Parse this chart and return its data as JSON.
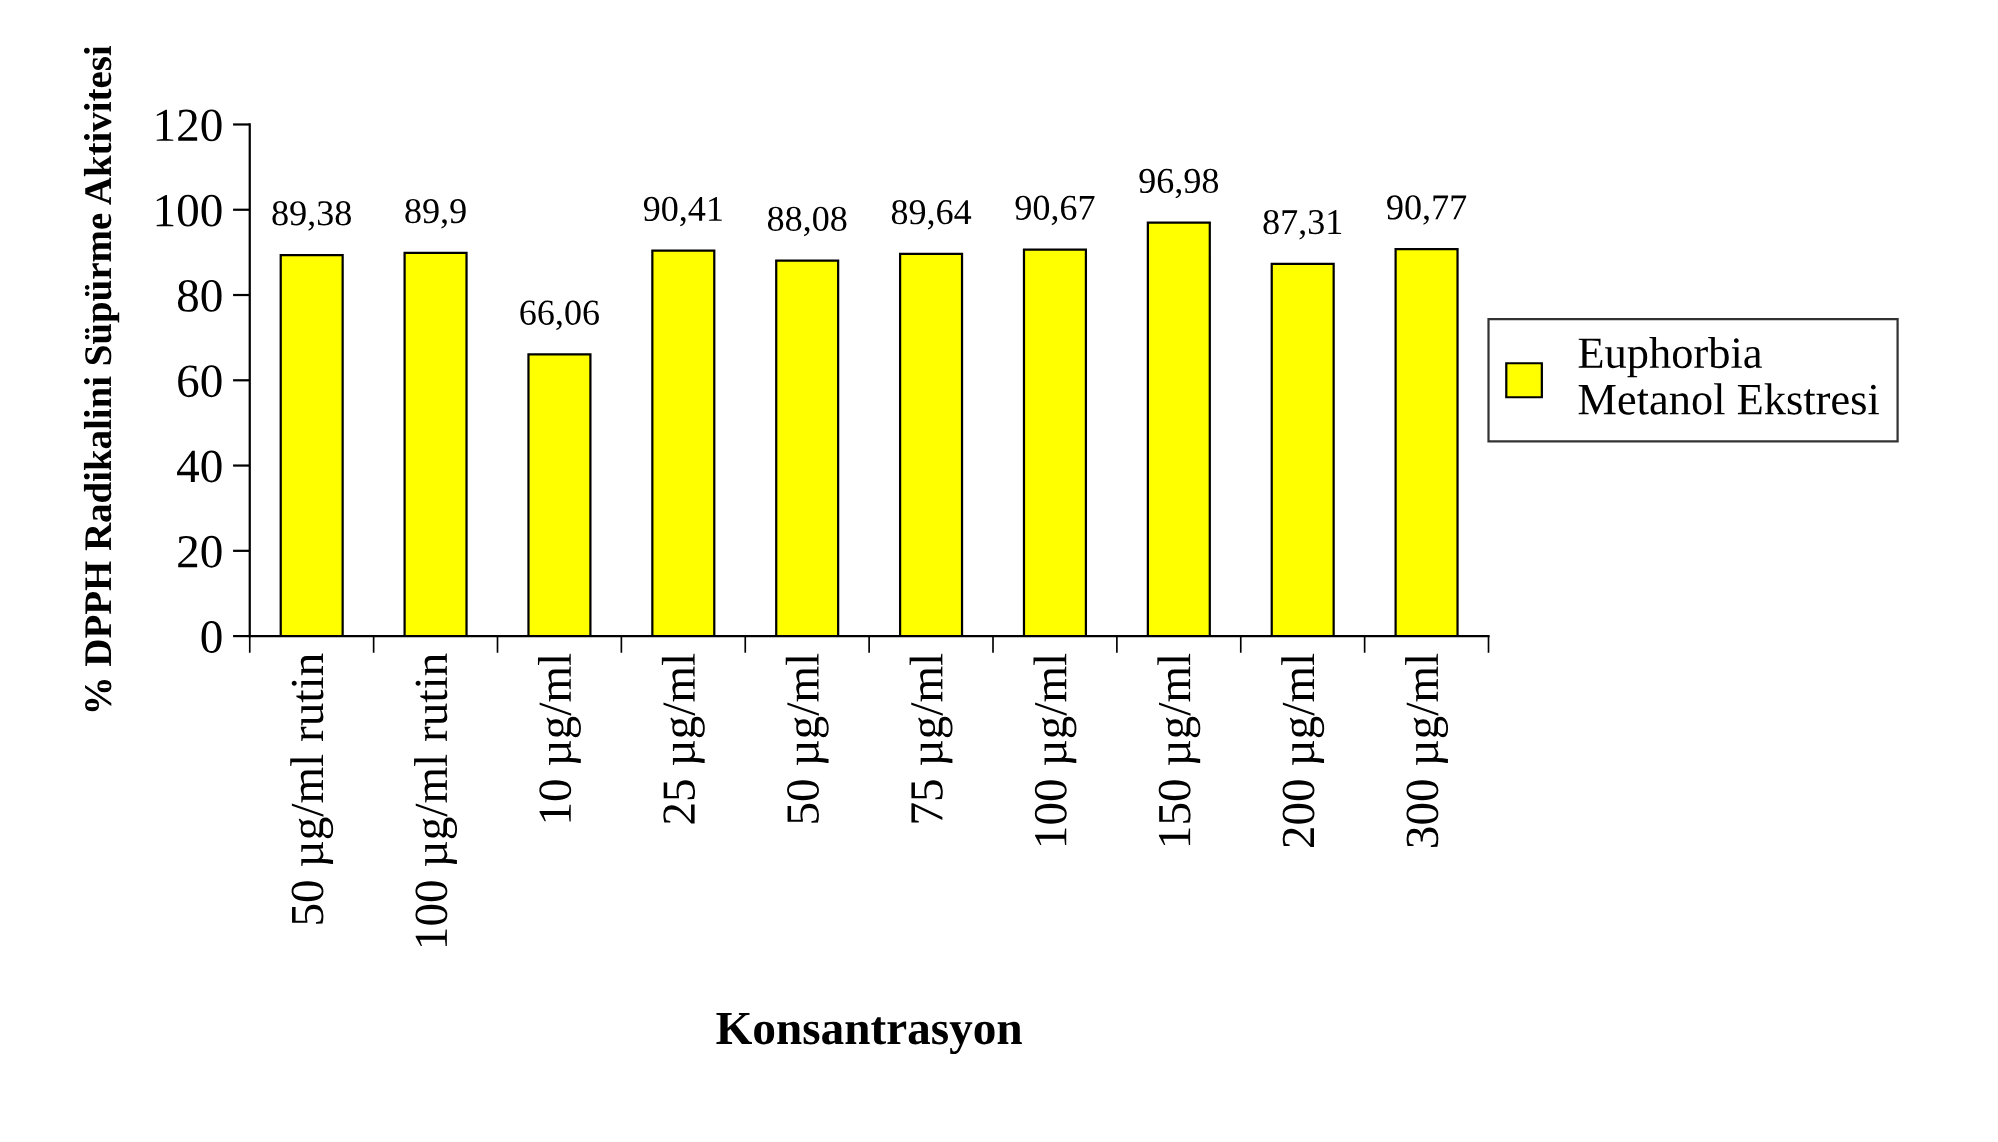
{
  "chart_data": {
    "type": "bar",
    "xlabel": "Konsantrasyon",
    "ylabel": "% DPPH Radikalini Süpürme Aktivitesi",
    "categories": [
      "50 µg/ml rutin",
      "100 µg/ml rutin",
      "10 µg/ml",
      "25 µg/ml",
      "50 µg/ml",
      "75 µg/ml",
      "100 µg/ml",
      "150 µg/ml",
      "200 µg/ml",
      "300 µg/ml"
    ],
    "series": [
      {
        "name": "Euphorbia\nMetanol Ekstresi",
        "color": "#ffff00",
        "values": [
          89.38,
          89.9,
          66.06,
          90.41,
          88.08,
          89.64,
          90.67,
          96.98,
          87.31,
          90.77
        ],
        "value_labels": [
          "89,38",
          "89,9",
          "66,06",
          "90,41",
          "88,08",
          "89,64",
          "90,67",
          "96,98",
          "87,31",
          "90,77"
        ]
      }
    ],
    "ylim": [
      0,
      120
    ],
    "yticks": [
      0,
      20,
      40,
      60,
      80,
      100,
      120
    ],
    "grid": false,
    "legend": "right"
  }
}
